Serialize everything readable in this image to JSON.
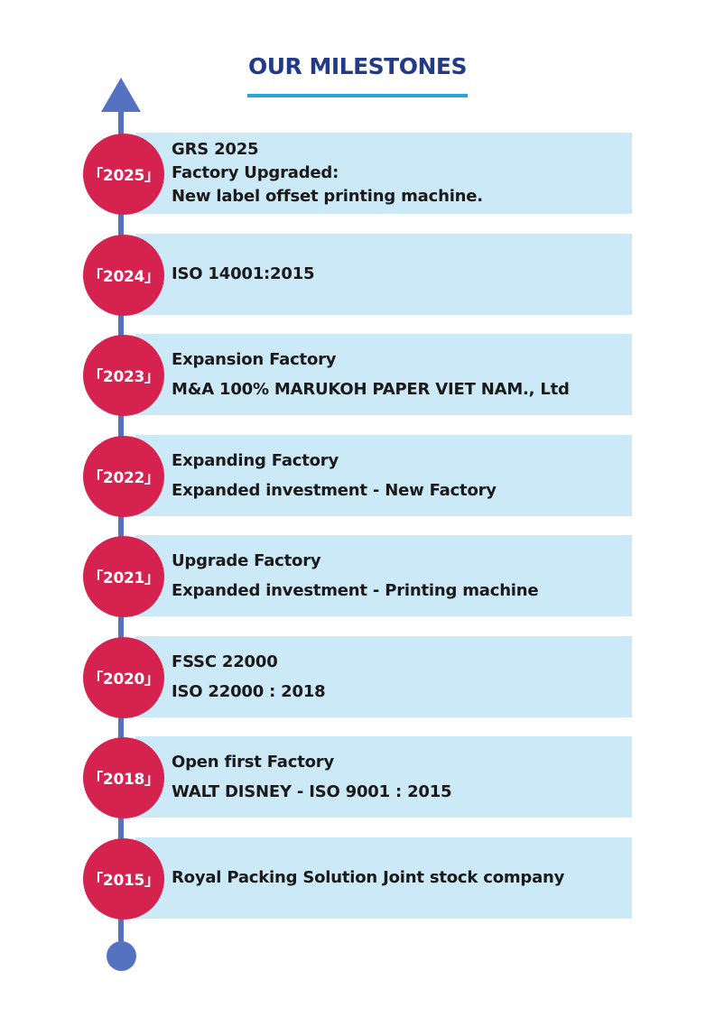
{
  "title": "OUR MILESTONES",
  "colors": {
    "title": "#233a86",
    "underline": "#2ba6dd",
    "axis": "#5472c0",
    "year_circle": "#d6224f",
    "box_fill": "#cce9f8"
  },
  "icons": {
    "axis_top": "arrow-up-icon",
    "axis_bottom": "dot-icon"
  },
  "milestones": [
    {
      "year": "「2025」",
      "lines": [
        "GRS 2025",
        "Factory Upgraded:",
        "New label offset printing machine."
      ]
    },
    {
      "year": "「2024」",
      "lines": [
        "ISO 14001:2015"
      ]
    },
    {
      "year": "「2023」",
      "lines": [
        "Expansion Factory",
        "M&A 100% MARUKOH PAPER VIET NAM., Ltd"
      ]
    },
    {
      "year": "「2022」",
      "lines": [
        "Expanding Factory",
        "Expanded investment - New Factory"
      ]
    },
    {
      "year": "「2021」",
      "lines": [
        "Upgrade Factory",
        "Expanded investment - Printing machine"
      ]
    },
    {
      "year": "「2020」",
      "lines": [
        "FSSC 22000",
        "ISO 22000 : 2018"
      ]
    },
    {
      "year": "「2018」",
      "lines": [
        "Open first Factory",
        "WALT DISNEY - ISO 9001 : 2015"
      ]
    },
    {
      "year": "「2015」",
      "lines": [
        "Royal Packing Solution Joint stock company"
      ]
    }
  ]
}
